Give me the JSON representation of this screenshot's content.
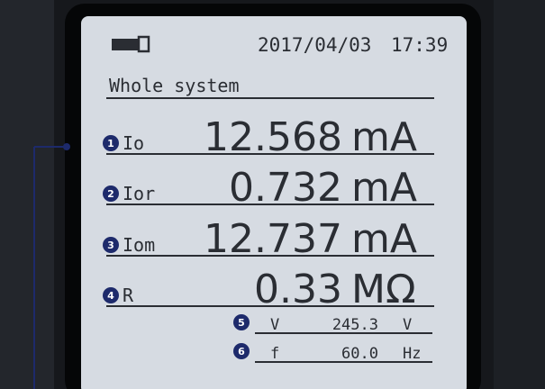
{
  "header": {
    "date": "2017/04/03",
    "time": "17:39"
  },
  "title": "Whole system",
  "rows": [
    {
      "badge": "1",
      "label": "Io",
      "value": "12.568",
      "unit": "mA"
    },
    {
      "badge": "2",
      "label": "Ior",
      "value": "0.732",
      "unit": "mA"
    },
    {
      "badge": "3",
      "label": "Iom",
      "value": "12.737",
      "unit": "mA"
    },
    {
      "badge": "4",
      "label": "R",
      "value": "0.33",
      "unit": "MΩ"
    },
    {
      "badge": "5",
      "label": "V",
      "value": "245.3",
      "unit": "V"
    },
    {
      "badge": "6",
      "label": "f",
      "value": "60.0",
      "unit": "Hz"
    }
  ]
}
